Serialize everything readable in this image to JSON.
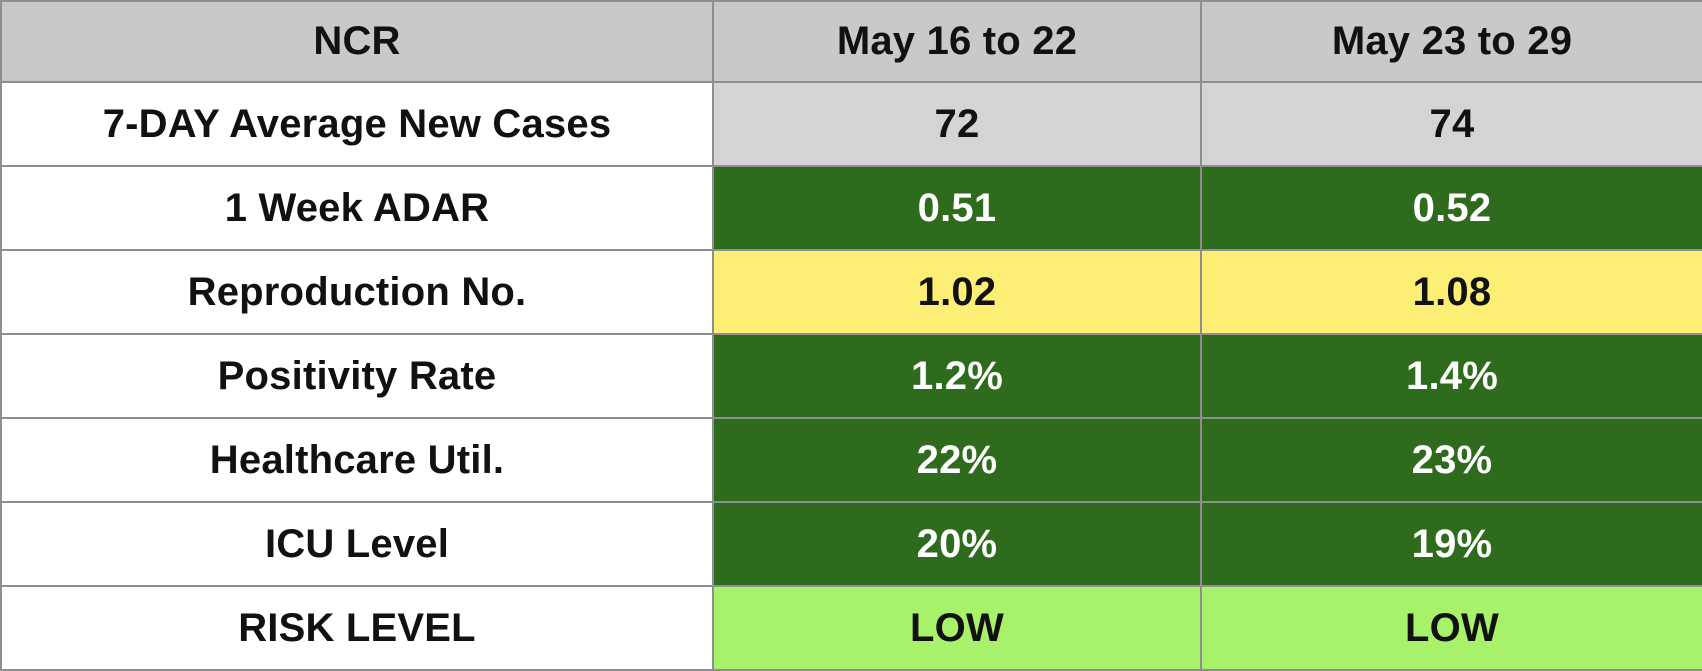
{
  "header": {
    "region": "NCR",
    "period_1": "May 16 to 22",
    "period_2": "May 23 to 29"
  },
  "rows": [
    {
      "label": "7-DAY Average New Cases",
      "period_1": "72",
      "period_2": "74",
      "status": "neutral"
    },
    {
      "label": "1 Week ADAR",
      "period_1": "0.51",
      "period_2": "0.52",
      "status": "good"
    },
    {
      "label": "Reproduction No.",
      "period_1": "1.02",
      "period_2": "1.08",
      "status": "caution"
    },
    {
      "label": "Positivity Rate",
      "period_1": "1.2%",
      "period_2": "1.4%",
      "status": "good"
    },
    {
      "label": "Healthcare Util.",
      "period_1": "22%",
      "period_2": "23%",
      "status": "good"
    },
    {
      "label": "ICU Level",
      "period_1": "20%",
      "period_2": "19%",
      "status": "good"
    },
    {
      "label": "RISK LEVEL",
      "period_1": "LOW",
      "period_2": "LOW",
      "status": "low-risk"
    }
  ],
  "colors": {
    "header_bg": "#c9c9c9",
    "neutral": "#d4d4d4",
    "good": "#2e6b1d",
    "caution": "#fdee76",
    "low_risk": "#a8f26b",
    "border": "#8e8e8e"
  }
}
